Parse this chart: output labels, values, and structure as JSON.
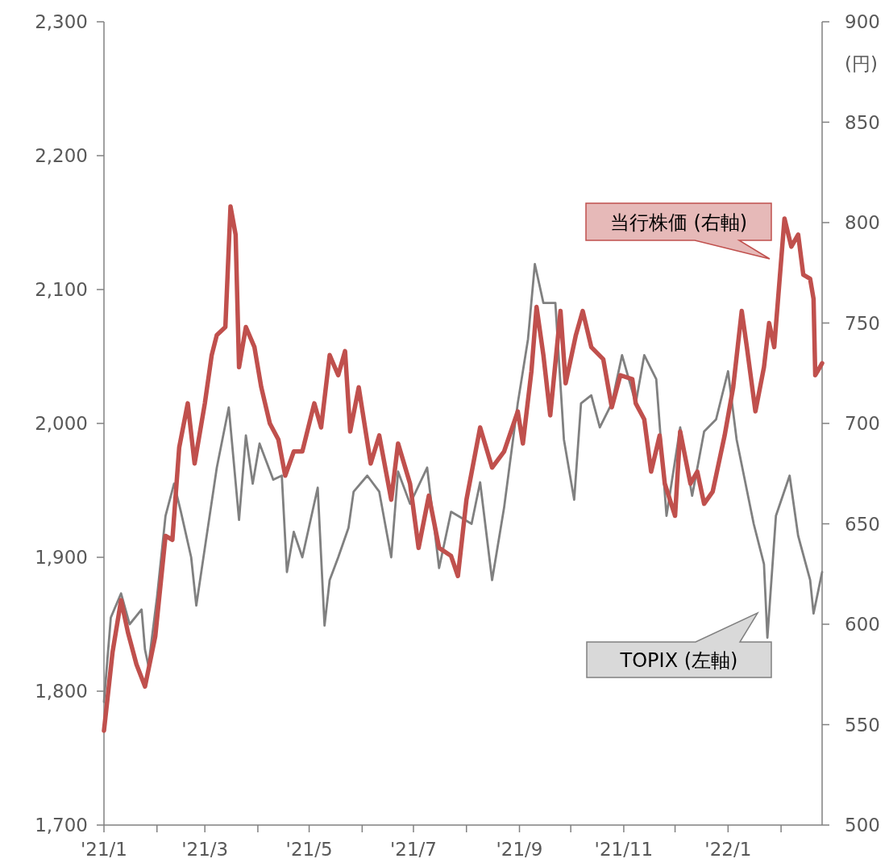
{
  "chart_data": {
    "type": "line",
    "y2label": "(円)",
    "legend": false,
    "xlim": [
      "2021-01-01",
      "2022-02-25"
    ],
    "xticks": [
      {
        "value": "2021-01-01",
        "label": "'21/1"
      },
      {
        "value": "2021-02-01",
        "label": null
      },
      {
        "value": "2021-03-01",
        "label": "'21/3"
      },
      {
        "value": "2021-04-01",
        "label": null
      },
      {
        "value": "2021-05-01",
        "label": "'21/5"
      },
      {
        "value": "2021-06-01",
        "label": null
      },
      {
        "value": "2021-07-01",
        "label": "'21/7"
      },
      {
        "value": "2021-08-01",
        "label": null
      },
      {
        "value": "2021-09-01",
        "label": "'21/9"
      },
      {
        "value": "2021-10-01",
        "label": null
      },
      {
        "value": "2021-11-01",
        "label": "'21/11"
      },
      {
        "value": "2021-12-01",
        "label": null
      },
      {
        "value": "2022-01-01",
        "label": "'22/1"
      },
      {
        "value": "2022-02-01",
        "label": null
      }
    ],
    "ylim": [
      1700,
      2300
    ],
    "yticks": [
      {
        "value": 1700,
        "label": "1,700"
      },
      {
        "value": 1800,
        "label": "1,800"
      },
      {
        "value": 1900,
        "label": "1,900"
      },
      {
        "value": 2000,
        "label": "2,000"
      },
      {
        "value": 2100,
        "label": "2,100"
      },
      {
        "value": 2200,
        "label": "2,200"
      },
      {
        "value": 2300,
        "label": "2,300"
      }
    ],
    "y2lim": [
      500,
      900
    ],
    "y2ticks": [
      500,
      550,
      600,
      650,
      700,
      750,
      800,
      850,
      900
    ],
    "series": [
      {
        "name": "TOPIX (左軸)",
        "color": "#808080",
        "axis": "y",
        "x": [
          "2021-01-01",
          "2021-01-05",
          "2021-01-11",
          "2021-01-16",
          "2021-01-23",
          "2021-01-25",
          "2021-01-27",
          "2021-02-01",
          "2021-02-06",
          "2021-02-11",
          "2021-02-15",
          "2021-02-21",
          "2021-02-24",
          "2021-03-01",
          "2021-03-08",
          "2021-03-15",
          "2021-03-21",
          "2021-03-25",
          "2021-03-29",
          "2021-04-02",
          "2021-04-10",
          "2021-04-15",
          "2021-04-18",
          "2021-04-22",
          "2021-04-27",
          "2021-05-06",
          "2021-05-10",
          "2021-05-13",
          "2021-05-18",
          "2021-05-24",
          "2021-05-27",
          "2021-06-04",
          "2021-06-11",
          "2021-06-18",
          "2021-06-22",
          "2021-06-29",
          "2021-07-09",
          "2021-07-16",
          "2021-07-23",
          "2021-08-04",
          "2021-08-09",
          "2021-08-16",
          "2021-08-23",
          "2021-08-31",
          "2021-09-06",
          "2021-09-10",
          "2021-09-15",
          "2021-09-22",
          "2021-09-27",
          "2021-10-03",
          "2021-10-07",
          "2021-10-13",
          "2021-10-18",
          "2021-10-25",
          "2021-10-31",
          "2021-11-08",
          "2021-11-13",
          "2021-11-20",
          "2021-11-26",
          "2021-12-04",
          "2021-12-11",
          "2021-12-18",
          "2021-12-25",
          "2022-01-01",
          "2022-01-06",
          "2022-01-16",
          "2022-01-22",
          "2022-01-24",
          "2022-01-29",
          "2022-02-06",
          "2022-02-11",
          "2022-02-18",
          "2022-02-20",
          "2022-02-25"
        ],
        "values": [
          1792,
          1855,
          1873,
          1850,
          1861,
          1831,
          1819,
          1870,
          1931,
          1955,
          1934,
          1900,
          1864,
          1907,
          1967,
          2012,
          1928,
          1991,
          1955,
          1985,
          1958,
          1961,
          1889,
          1919,
          1900,
          1952,
          1849,
          1883,
          1900,
          1922,
          1949,
          1961,
          1949,
          1900,
          1964,
          1940,
          1967,
          1892,
          1934,
          1925,
          1956,
          1883,
          1937,
          2015,
          2063,
          2119,
          2090,
          2090,
          1988,
          1943,
          2015,
          2021,
          1997,
          2015,
          2051,
          2015,
          2051,
          2033,
          1931,
          1997,
          1946,
          1994,
          2003,
          2039,
          1988,
          1925,
          1895,
          1840,
          1931,
          1961,
          1916,
          1883,
          1858,
          1889
        ]
      },
      {
        "name": "当行株価 (右軸)",
        "color": "#c0504d",
        "axis": "y2",
        "x": [
          "2021-01-01",
          "2021-01-06",
          "2021-01-11",
          "2021-01-15",
          "2021-01-20",
          "2021-01-25",
          "2021-01-31",
          "2021-02-06",
          "2021-02-10",
          "2021-02-14",
          "2021-02-19",
          "2021-02-23",
          "2021-03-01",
          "2021-03-05",
          "2021-03-08",
          "2021-03-13",
          "2021-03-16",
          "2021-03-19",
          "2021-03-21",
          "2021-03-25",
          "2021-03-30",
          "2021-04-03",
          "2021-04-08",
          "2021-04-13",
          "2021-04-17",
          "2021-04-22",
          "2021-04-27",
          "2021-05-04",
          "2021-05-08",
          "2021-05-13",
          "2021-05-18",
          "2021-05-22",
          "2021-05-25",
          "2021-05-30",
          "2021-06-06",
          "2021-06-11",
          "2021-06-18",
          "2021-06-22",
          "2021-06-29",
          "2021-07-04",
          "2021-07-10",
          "2021-07-16",
          "2021-07-23",
          "2021-07-27",
          "2021-08-01",
          "2021-08-09",
          "2021-08-16",
          "2021-08-23",
          "2021-08-31",
          "2021-09-03",
          "2021-09-08",
          "2021-09-11",
          "2021-09-15",
          "2021-09-19",
          "2021-09-25",
          "2021-09-28",
          "2021-10-04",
          "2021-10-08",
          "2021-10-13",
          "2021-10-20",
          "2021-10-25",
          "2021-10-30",
          "2021-11-06",
          "2021-11-08",
          "2021-11-13",
          "2021-11-17",
          "2021-11-22",
          "2021-11-25",
          "2021-12-01",
          "2021-12-04",
          "2021-12-10",
          "2021-12-14",
          "2021-12-18",
          "2021-12-23",
          "2021-12-30",
          "2022-01-04",
          "2022-01-09",
          "2022-01-12",
          "2022-01-17",
          "2022-01-22",
          "2022-01-25",
          "2022-01-28",
          "2022-02-03",
          "2022-02-07",
          "2022-02-11",
          "2022-02-14",
          "2022-02-18",
          "2022-02-20",
          "2022-02-21",
          "2022-02-25"
        ],
        "values": [
          547,
          586,
          612,
          596,
          580,
          569,
          594,
          644,
          642,
          688,
          710,
          680,
          710,
          734,
          744,
          748,
          808,
          794,
          728,
          748,
          738,
          718,
          700,
          692,
          674,
          686,
          686,
          710,
          698,
          734,
          724,
          736,
          696,
          718,
          680,
          694,
          662,
          690,
          670,
          638,
          664,
          638,
          634,
          624,
          662,
          698,
          678,
          686,
          706,
          690,
          726,
          758,
          734,
          704,
          756,
          720,
          744,
          756,
          738,
          732,
          708,
          724,
          722,
          710,
          702,
          676,
          694,
          670,
          654,
          696,
          670,
          676,
          660,
          666,
          694,
          718,
          756,
          738,
          706,
          728,
          750,
          738,
          802,
          788,
          794,
          774,
          772,
          762,
          724,
          730
        ]
      }
    ]
  }
}
